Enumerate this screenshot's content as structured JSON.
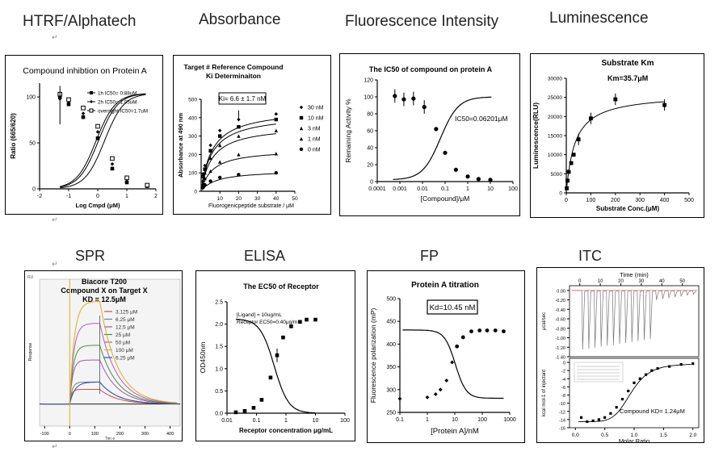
{
  "sections": [
    "HTRF/Alphatech",
    "Absorbance",
    "Fluorescence Intensity",
    "Luminescence",
    "SPR",
    "ELISA",
    "FP",
    "ITC"
  ],
  "return_mark": "↵",
  "chart_data": [
    {
      "type": "line",
      "title": "Compound inhibtion on Protein A",
      "xlabel": "Log Cmpd (μM)",
      "ylabel": "Ratio (665/620)",
      "xlim": [
        -2,
        2
      ],
      "ylim": [
        0,
        100
      ],
      "xticks": [
        "-2",
        "-1",
        "0",
        "1",
        "2"
      ],
      "yticks": [
        "0",
        "50",
        "100"
      ],
      "legend_position": "top-right",
      "series": [
        {
          "name": "1h IC50= 0.88uM",
          "x": [
            -1.3,
            -1.0,
            -0.5,
            0.0,
            0.5,
            1.0,
            1.7
          ],
          "y": [
            100,
            92,
            78,
            55,
            22,
            7,
            3
          ]
        },
        {
          "name": "2h IC50= 1.05uM",
          "x": [
            -1.3,
            -1.0,
            -0.5,
            0.0,
            0.5,
            1.0,
            1.7
          ],
          "y": [
            98,
            95,
            82,
            62,
            27,
            8,
            3
          ]
        },
        {
          "name": "overnight IC50=1.7uM",
          "x": [
            -1.3,
            -1.0,
            -0.5,
            0.0,
            0.5,
            1.0,
            1.7
          ],
          "y": [
            103,
            97,
            88,
            68,
            33,
            12,
            4
          ]
        }
      ]
    },
    {
      "type": "line",
      "title": "Target # Reference Compound",
      "subtitle": "Ki Determinaiton",
      "annotation": "Ki= 6.6 ± 1.7 nM",
      "xlabel": "Fluorogenicpeptide substrate / μM",
      "ylabel": "Absorbance at 490 nm",
      "xlim": [
        0,
        50
      ],
      "ylim": [
        0,
        500
      ],
      "xticks": [
        "10",
        "20",
        "30",
        "40",
        "50"
      ],
      "yticks": [
        "0",
        "100",
        "200",
        "300",
        "400",
        "500"
      ],
      "legend_position": "right",
      "series": [
        {
          "name": "30 nM",
          "x": [
            1,
            2,
            5,
            10,
            20,
            40
          ],
          "y": [
            95,
            140,
            250,
            330,
            390,
            420
          ]
        },
        {
          "name": "10 nM",
          "x": [
            1,
            2,
            5,
            10,
            20,
            40
          ],
          "y": [
            80,
            120,
            220,
            300,
            350,
            390
          ]
        },
        {
          "name": "3 nM",
          "x": [
            1,
            2,
            5,
            10,
            20,
            40
          ],
          "y": [
            60,
            100,
            180,
            250,
            300,
            330
          ]
        },
        {
          "name": "1 nM",
          "x": [
            1,
            2,
            5,
            10,
            20,
            40
          ],
          "y": [
            40,
            70,
            110,
            160,
            200,
            205
          ]
        },
        {
          "name": "0 nM",
          "x": [
            1,
            2,
            5,
            10,
            20,
            40
          ],
          "y": [
            20,
            35,
            55,
            75,
            90,
            100
          ]
        }
      ]
    },
    {
      "type": "line",
      "title": "The IC50 of compound on protein A",
      "annotation": "IC50=0.06201μM",
      "xlabel": "[Compound]/μM",
      "ylabel": "Remaining Activity %",
      "log_x": true,
      "xticks": [
        "0.0001",
        "0.001",
        "0.01",
        "0.1",
        "1",
        "10",
        "100"
      ],
      "yticks": [
        "0",
        "20",
        "40",
        "60",
        "80",
        "100",
        "120"
      ],
      "ylim": [
        0,
        120
      ],
      "series": [
        {
          "x": [
            0.0006,
            0.0015,
            0.004,
            0.012,
            0.04,
            0.1,
            0.3,
            1,
            3,
            10
          ],
          "y": [
            101,
            97,
            98,
            88,
            62,
            34,
            14,
            6,
            3,
            2
          ]
        }
      ]
    },
    {
      "type": "line",
      "title": "Substrate Km",
      "annotation": "Km=35.7μM",
      "xlabel": "Substrate Conc.(μM)",
      "ylabel": "Luminescence(RLU)",
      "xlim": [
        0,
        500
      ],
      "ylim": [
        0,
        30000
      ],
      "xticks": [
        "0",
        "100",
        "200",
        "300",
        "400",
        "500"
      ],
      "yticks": [
        "0",
        "5000",
        "10000",
        "15000",
        "20000",
        "25000",
        "30000"
      ],
      "series": [
        {
          "x": [
            2,
            5,
            10,
            20,
            30,
            50,
            100,
            200,
            400
          ],
          "y": [
            1200,
            3200,
            5500,
            7800,
            10000,
            14000,
            19500,
            24500,
            23000
          ]
        }
      ]
    },
    {
      "type": "line",
      "title": "Biacore T200",
      "subtitle": "Compound X on Target X",
      "annotation": "KD = 12.5μM",
      "xlabel": "Tim e",
      "ylabel": "Response",
      "corner_label": "RU",
      "xticks": [
        "-100",
        "0",
        "100",
        "200",
        "300",
        "400"
      ],
      "series": [
        {
          "name": "3.125 μM",
          "color": "#c05050",
          "level": 4
        },
        {
          "name": "6.25 μM",
          "color": "#708090",
          "level": 6
        },
        {
          "name": "12.5 μM",
          "color": "#9a5aa8",
          "level": 12
        },
        {
          "name": "25 μM",
          "color": "#4a8a4a",
          "level": 16
        },
        {
          "name": "50 μM",
          "color": "#b060b0",
          "level": 22
        },
        {
          "name": "100 μM",
          "color": "#d8b020",
          "level": 28
        },
        {
          "name": "6.25 μM",
          "color": "#3050a0",
          "level": 6
        }
      ]
    },
    {
      "type": "line",
      "title": "The EC50 of Receptor",
      "annotation_lines": [
        "[Ligand] = 10ug/mL",
        "Receptor EC50=0.40μg/mL"
      ],
      "xlabel": "Receptor concentration μg/mL",
      "ylabel": "OD450nm",
      "log_x": true,
      "xticks": [
        "0.01",
        "0.1",
        "1",
        "10",
        "100"
      ],
      "yticks": [
        "0.0",
        "0.5",
        "1.0",
        "1.5",
        "2.0",
        "2.5"
      ],
      "ylim": [
        0,
        2.5
      ],
      "series": [
        {
          "x": [
            0.02,
            0.04,
            0.08,
            0.15,
            0.3,
            0.5,
            0.8,
            1.5,
            3,
            5,
            10
          ],
          "y": [
            0.02,
            0.05,
            0.12,
            0.3,
            0.8,
            1.3,
            1.7,
            1.95,
            2.05,
            2.1,
            2.1
          ]
        }
      ]
    },
    {
      "type": "line",
      "title": "Protein A titration",
      "annotation": "Kd=10.45 nM",
      "xlabel": "[Protein A]/nM",
      "ylabel": "Fluorescence polarization (mP)",
      "log_x": true,
      "xticks": [
        "0.1",
        "1",
        "10",
        "100",
        "1000"
      ],
      "yticks": [
        "250",
        "300",
        "350",
        "400",
        "450",
        "500"
      ],
      "ylim": [
        250,
        500
      ],
      "series": [
        {
          "x": [
            0.1,
            1,
            2,
            3,
            5,
            8,
            12,
            20,
            40,
            80,
            150,
            300,
            600
          ],
          "y": [
            280,
            283,
            290,
            300,
            320,
            360,
            395,
            415,
            428,
            430,
            430,
            430,
            428
          ]
        }
      ]
    },
    {
      "type": "line",
      "title": "Time (min)",
      "annotation": "Compound KD= 1.24μM",
      "xlabel": "Molar Ratio",
      "ylabel_top": "μcal/sec",
      "ylabel_bottom": "kcal mol-1 of injectant",
      "xticks": [
        "0.0",
        "0.5",
        "1.0",
        "1.5",
        "2.0"
      ],
      "top_xticks": [
        "0",
        "10",
        "20",
        "30",
        "40",
        "50"
      ],
      "top_yticks": [
        "0.00",
        "-0.20",
        "-0.40",
        "-0.60",
        "-0.80",
        "-1.00",
        "-1.20",
        "-1.40"
      ],
      "bottom_yticks": [
        "0",
        "-2",
        "-4",
        "-6",
        "-8",
        "-10",
        "-12",
        "-14",
        "-16"
      ],
      "series": [
        {
          "x": [
            0.1,
            0.2,
            0.3,
            0.4,
            0.5,
            0.6,
            0.7,
            0.8,
            0.9,
            1.0,
            1.1,
            1.2,
            1.3,
            1.4,
            1.6,
            1.8,
            2.0
          ],
          "y": [
            -13.5,
            -14.5,
            -14.3,
            -14,
            -13.5,
            -12.5,
            -11,
            -9,
            -7,
            -5,
            -4,
            -3,
            -2,
            -1.5,
            -1,
            -0.5,
            -0.3
          ]
        }
      ]
    }
  ]
}
